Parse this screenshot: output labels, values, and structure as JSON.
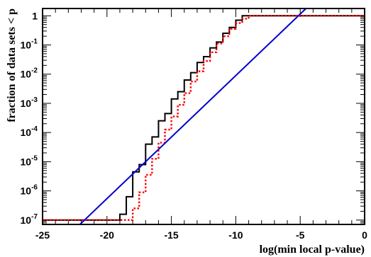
{
  "chart_data": {
    "type": "line",
    "title": "",
    "xlabel": "log(min local p-value)",
    "ylabel": "fraction of data sets < p",
    "xlim": [
      -25,
      0
    ],
    "ylim_log10": [
      -7.15,
      0.25
    ],
    "y_scale": "log",
    "x_ticks": [
      -25,
      -20,
      -15,
      -10,
      -5,
      0
    ],
    "x_tick_labels": [
      "-25",
      "-20",
      "-15",
      "-10",
      "-5",
      "0"
    ],
    "y_ticks": [
      {
        "exp": -7,
        "label_base": "10",
        "label_exp": "-7"
      },
      {
        "exp": -6,
        "label_base": "10",
        "label_exp": "-6"
      },
      {
        "exp": -5,
        "label_base": "10",
        "label_exp": "-5"
      },
      {
        "exp": -4,
        "label_base": "10",
        "label_exp": "-4"
      },
      {
        "exp": -3,
        "label_base": "10",
        "label_exp": "-3"
      },
      {
        "exp": -2,
        "label_base": "10",
        "label_exp": "-2"
      },
      {
        "exp": -1,
        "label_base": "10",
        "label_exp": "-1"
      },
      {
        "exp": 0,
        "label_base": "1",
        "label_exp": ""
      }
    ],
    "series": [
      {
        "color": "#000000",
        "style": "solid-step",
        "x": [
          -25,
          -19,
          -18.5,
          -18,
          -17.5,
          -17,
          -16.5,
          -16,
          -15.5,
          -15,
          -14.5,
          -14,
          -13.5,
          -13,
          -12.5,
          -12,
          -11.5,
          -11,
          -10.5,
          -10,
          -9.5,
          -9,
          -8.5,
          -8,
          -7.5,
          -7,
          -6.5,
          -6,
          -5.5,
          -5,
          -4.5,
          -4,
          -3.5,
          -3,
          -2.5,
          0
        ],
        "log10_y": [
          -7.0,
          -6.8,
          -6.2,
          -5.35,
          -5.1,
          -4.4,
          -4.15,
          -3.6,
          -3.35,
          -2.85,
          -2.6,
          -2.2,
          -1.95,
          -1.6,
          -1.4,
          -1.1,
          -0.9,
          -0.6,
          -0.4,
          -0.15,
          0.0,
          0.0,
          0.0,
          0.0,
          0.0,
          0.0,
          0.0,
          0.0,
          0.0,
          0.0,
          0.0,
          0.0,
          0.0,
          0.0,
          0.0,
          0.0
        ]
      },
      {
        "color": "#ff0000",
        "style": "dotted-step",
        "x": [
          -25,
          -18,
          -17.5,
          -17,
          -16.5,
          -16,
          -15.5,
          -15,
          -14.5,
          -14,
          -13.5,
          -13,
          -12.5,
          -12,
          -11.5,
          -11,
          -10.5,
          -10,
          -9.5,
          -9,
          -8.5,
          -8,
          -7.5,
          -7,
          -6.5,
          -6,
          -5.5,
          -5,
          -4.5,
          -4,
          -3.5,
          -3,
          0
        ],
        "log10_y": [
          -7.0,
          -6.6,
          -6.05,
          -5.45,
          -4.9,
          -4.35,
          -3.9,
          -3.45,
          -3.05,
          -2.65,
          -2.25,
          -1.9,
          -1.55,
          -1.25,
          -0.95,
          -0.7,
          -0.45,
          -0.25,
          -0.1,
          0.0,
          0.0,
          0.0,
          0.0,
          0.0,
          0.0,
          0.0,
          0.0,
          0.0,
          0.0,
          0.0,
          0.0,
          0.0,
          0.0
        ]
      },
      {
        "color": "#0000cc",
        "style": "solid-line",
        "x": [
          -22.1,
          -4.55
        ],
        "log10_y": [
          -7.15,
          0.25
        ]
      }
    ]
  }
}
